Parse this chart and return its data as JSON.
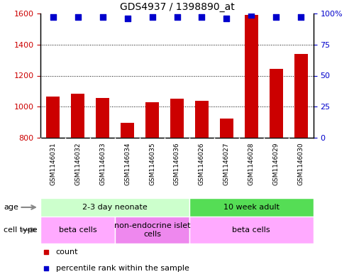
{
  "title": "GDS4937 / 1398890_at",
  "samples": [
    "GSM1146031",
    "GSM1146032",
    "GSM1146033",
    "GSM1146034",
    "GSM1146035",
    "GSM1146036",
    "GSM1146026",
    "GSM1146027",
    "GSM1146028",
    "GSM1146029",
    "GSM1146030"
  ],
  "counts": [
    1065,
    1085,
    1055,
    895,
    1030,
    1050,
    1040,
    925,
    1590,
    1245,
    1340
  ],
  "percentiles": [
    97,
    97,
    97,
    96,
    97,
    97,
    97,
    96,
    99,
    97,
    97
  ],
  "ylim_left": [
    800,
    1600
  ],
  "ylim_right": [
    0,
    100
  ],
  "yticks_left": [
    800,
    1000,
    1200,
    1400,
    1600
  ],
  "yticks_right": [
    0,
    25,
    50,
    75,
    100
  ],
  "bar_color": "#cc0000",
  "dot_color": "#0000cc",
  "dot_size": 35,
  "age_groups": [
    {
      "label": "2-3 day neonate",
      "start": 0,
      "end": 6,
      "color": "#ccffcc"
    },
    {
      "label": "10 week adult",
      "start": 6,
      "end": 11,
      "color": "#55dd55"
    }
  ],
  "cell_type_groups": [
    {
      "label": "beta cells",
      "start": 0,
      "end": 3,
      "color": "#ffaaff"
    },
    {
      "label": "non-endocrine islet\ncells",
      "start": 3,
      "end": 6,
      "color": "#ee88ee"
    },
    {
      "label": "beta cells",
      "start": 6,
      "end": 11,
      "color": "#ffaaff"
    }
  ],
  "tick_label_color_left": "#cc0000",
  "tick_label_color_right": "#0000cc",
  "xtick_bg_color": "#d8d8d8",
  "plot_bg_color": "#ffffff",
  "border_color": "#000000"
}
